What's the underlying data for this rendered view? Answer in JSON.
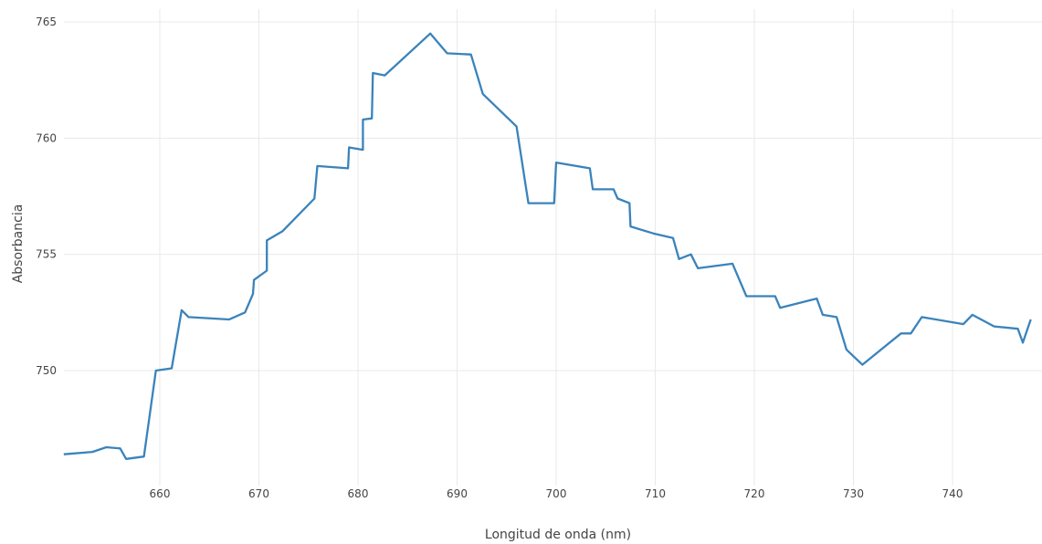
{
  "chart_data": {
    "type": "line",
    "title": "",
    "xlabel": "Longitud de onda (nm)",
    "ylabel": "Absorbancia",
    "xlim": [
      650.3,
      747.9
    ],
    "ylim": [
      745.4,
      765.4
    ],
    "xticks": [
      660,
      670,
      680,
      690,
      700,
      710,
      720,
      730,
      740
    ],
    "yticks": [
      750,
      755,
      760,
      765
    ],
    "grid": true,
    "legend": "none",
    "series": [
      {
        "color": "#3a83bb",
        "points": [
          [
            650.3,
            746.4
          ],
          [
            653.2,
            746.5
          ],
          [
            654.6,
            746.7
          ],
          [
            656.0,
            746.65
          ],
          [
            656.6,
            746.2
          ],
          [
            658.4,
            746.3
          ],
          [
            659.6,
            750.0
          ],
          [
            661.2,
            750.1
          ],
          [
            662.2,
            752.6
          ],
          [
            662.9,
            752.3
          ],
          [
            667.0,
            752.2
          ],
          [
            668.6,
            752.5
          ],
          [
            669.4,
            753.3
          ],
          [
            669.5,
            753.9
          ],
          [
            670.8,
            754.3
          ],
          [
            670.8,
            755.6
          ],
          [
            672.4,
            756.0
          ],
          [
            675.6,
            757.4
          ],
          [
            675.9,
            758.8
          ],
          [
            679.0,
            758.7
          ],
          [
            679.1,
            759.6
          ],
          [
            680.5,
            759.5
          ],
          [
            680.5,
            760.8
          ],
          [
            681.4,
            760.85
          ],
          [
            681.5,
            762.8
          ],
          [
            682.7,
            762.7
          ],
          [
            687.3,
            764.5
          ],
          [
            689.0,
            763.65
          ],
          [
            691.4,
            763.6
          ],
          [
            692.6,
            761.9
          ],
          [
            696.0,
            760.5
          ],
          [
            697.2,
            757.2
          ],
          [
            699.8,
            757.2
          ],
          [
            700.0,
            758.95
          ],
          [
            703.4,
            758.7
          ],
          [
            703.7,
            757.8
          ],
          [
            705.8,
            757.8
          ],
          [
            706.2,
            757.4
          ],
          [
            707.4,
            757.2
          ],
          [
            707.5,
            756.2
          ],
          [
            709.8,
            755.9
          ],
          [
            711.8,
            755.7
          ],
          [
            712.4,
            754.8
          ],
          [
            713.6,
            755.0
          ],
          [
            714.3,
            754.4
          ],
          [
            717.8,
            754.6
          ],
          [
            719.2,
            753.2
          ],
          [
            722.1,
            753.2
          ],
          [
            722.6,
            752.7
          ],
          [
            726.3,
            753.1
          ],
          [
            726.9,
            752.4
          ],
          [
            728.3,
            752.3
          ],
          [
            729.3,
            750.9
          ],
          [
            730.9,
            750.25
          ],
          [
            734.8,
            751.6
          ],
          [
            735.8,
            751.6
          ],
          [
            736.9,
            752.3
          ],
          [
            741.1,
            752.0
          ],
          [
            742.0,
            752.4
          ],
          [
            744.2,
            751.9
          ],
          [
            746.6,
            751.8
          ],
          [
            747.1,
            751.2
          ],
          [
            747.9,
            752.2
          ]
        ]
      }
    ]
  }
}
